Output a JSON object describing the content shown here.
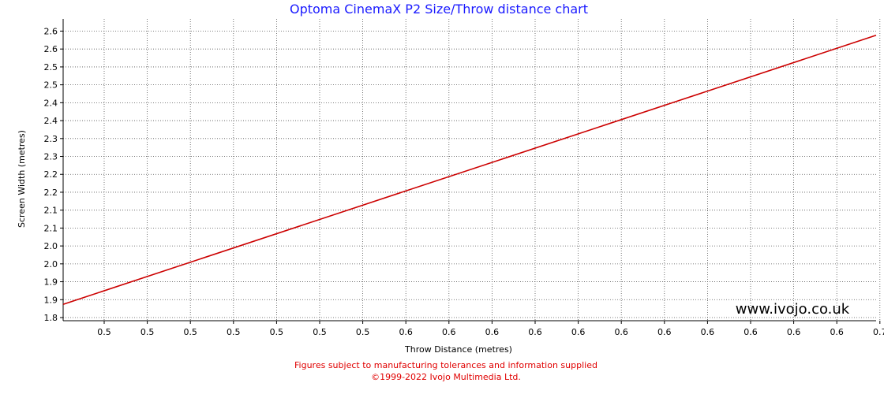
{
  "chart_data": {
    "type": "line",
    "title": "Optoma CinemaX P2 Size/Throw distance chart",
    "xlabel": "Throw Distance (metres)",
    "ylabel": "Screen Width (metres)",
    "x_tick_labels": [
      "0.5",
      "0.5",
      "0.5",
      "0.5",
      "0.5",
      "0.5",
      "0.5",
      "0.6",
      "0.6",
      "0.6",
      "0.6",
      "0.6",
      "0.6",
      "0.6",
      "0.6",
      "0.6",
      "0.6",
      "0.6",
      "0.7"
    ],
    "y_tick_labels": [
      "1.8",
      "1.9",
      "1.9",
      "2.0",
      "2.0",
      "2.1",
      "2.1",
      "2.2",
      "2.2",
      "2.3",
      "2.3",
      "2.4",
      "2.4",
      "2.5",
      "2.5",
      "2.6",
      "2.6"
    ],
    "xlim": [
      0.44,
      0.7356
    ],
    "ylim": [
      1.797,
      2.625
    ],
    "grid": true,
    "series": [
      {
        "color": "#cc0000",
        "x": [
          0.44,
          0.7356
        ],
        "y": [
          1.842,
          2.58
        ]
      }
    ],
    "annotation": "www.ivojo.co.uk"
  },
  "footer": {
    "line1": "Figures subject to manufacturing tolerances and information supplied",
    "line2": "©1999-2022 Ivojo Multimedia Ltd."
  }
}
